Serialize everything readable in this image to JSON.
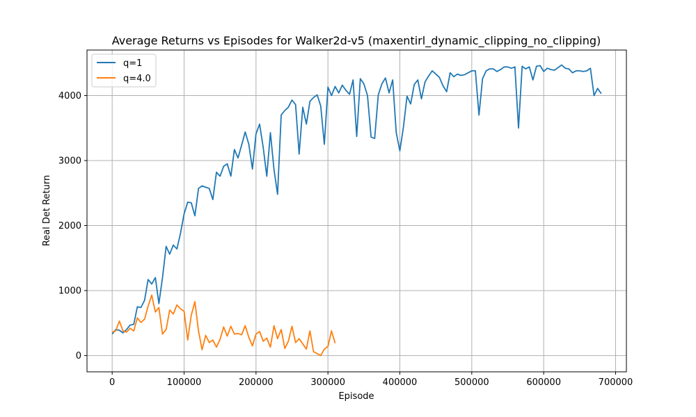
{
  "chart_data": {
    "type": "line",
    "title": "Average Returns vs Episodes for Walker2d-v5 (maxentirl_dynamic_clipping_no_clipping)",
    "xlabel": "Episode",
    "ylabel": "Real Det Return",
    "xlim": [
      -35000,
      715000
    ],
    "ylim": [
      -250,
      4700
    ],
    "xticks": [
      0,
      100000,
      200000,
      300000,
      400000,
      500000,
      600000,
      700000
    ],
    "yticks": [
      0,
      1000,
      2000,
      3000,
      4000
    ],
    "grid": true,
    "legend_position": "top-left",
    "series": [
      {
        "name": "q=1",
        "color": "#1f77b4",
        "x": [
          0,
          5000,
          10000,
          15000,
          20000,
          25000,
          30000,
          35000,
          40000,
          45000,
          50000,
          55000,
          60000,
          65000,
          70000,
          75000,
          80000,
          85000,
          90000,
          95000,
          100000,
          105000,
          110000,
          115000,
          120000,
          125000,
          130000,
          135000,
          140000,
          145000,
          150000,
          155000,
          160000,
          165000,
          170000,
          175000,
          180000,
          185000,
          190000,
          195000,
          200000,
          205000,
          210000,
          215000,
          220000,
          225000,
          230000,
          235000,
          240000,
          245000,
          250000,
          255000,
          260000,
          265000,
          270000,
          275000,
          280000,
          285000,
          290000,
          295000,
          300000,
          305000,
          310000,
          315000,
          320000,
          325000,
          330000,
          335000,
          340000,
          345000,
          350000,
          355000,
          360000,
          365000,
          370000,
          375000,
          380000,
          385000,
          390000,
          395000,
          400000,
          405000,
          410000,
          415000,
          420000,
          425000,
          430000,
          435000,
          440000,
          445000,
          450000,
          455000,
          460000,
          465000,
          470000,
          475000,
          480000,
          485000,
          490000,
          495000,
          500000,
          505000,
          510000,
          515000,
          520000,
          525000,
          530000,
          535000,
          540000,
          545000,
          550000,
          555000,
          560000,
          565000,
          570000,
          575000,
          580000,
          585000,
          590000,
          595000,
          600000,
          605000,
          610000,
          615000,
          620000,
          625000,
          630000,
          635000,
          640000,
          645000,
          650000,
          655000,
          660000,
          665000,
          670000,
          675000,
          680000
        ],
        "values": [
          330,
          400,
          390,
          350,
          400,
          470,
          480,
          750,
          740,
          850,
          1170,
          1100,
          1200,
          800,
          1200,
          1680,
          1560,
          1700,
          1640,
          1880,
          2180,
          2360,
          2350,
          2150,
          2570,
          2610,
          2590,
          2570,
          2400,
          2820,
          2760,
          2910,
          2950,
          2760,
          3170,
          3040,
          3240,
          3440,
          3250,
          2870,
          3410,
          3560,
          3200,
          2760,
          3430,
          2860,
          2480,
          3700,
          3770,
          3820,
          3930,
          3860,
          3100,
          3820,
          3560,
          3910,
          3970,
          4010,
          3840,
          3250,
          4130,
          4000,
          4140,
          4040,
          4160,
          4080,
          4020,
          4240,
          3370,
          4260,
          4180,
          4000,
          3360,
          3340,
          4010,
          4180,
          4270,
          4040,
          4240,
          3430,
          3150,
          3520,
          3990,
          3870,
          4170,
          4240,
          3950,
          4210,
          4300,
          4380,
          4330,
          4280,
          4150,
          4060,
          4350,
          4290,
          4330,
          4310,
          4320,
          4350,
          4380,
          4380,
          3700,
          4260,
          4380,
          4410,
          4410,
          4370,
          4400,
          4440,
          4440,
          4420,
          4440,
          3500,
          4450,
          4410,
          4440,
          4240,
          4450,
          4460,
          4370,
          4420,
          4400,
          4390,
          4430,
          4470,
          4420,
          4410,
          4350,
          4380,
          4380,
          4370,
          4380,
          4420,
          4000,
          4110,
          4030
        ]
      },
      {
        "name": "q=4.0",
        "color": "#ff7f0e",
        "x": [
          0,
          5000,
          10000,
          15000,
          20000,
          25000,
          30000,
          35000,
          40000,
          45000,
          50000,
          55000,
          60000,
          65000,
          70000,
          75000,
          80000,
          85000,
          90000,
          95000,
          100000,
          105000,
          110000,
          115000,
          120000,
          125000,
          130000,
          135000,
          140000,
          145000,
          150000,
          155000,
          160000,
          165000,
          170000,
          175000,
          180000,
          185000,
          190000,
          195000,
          200000,
          205000,
          210000,
          215000,
          220000,
          225000,
          230000,
          235000,
          240000,
          245000,
          250000,
          255000,
          260000,
          265000,
          270000,
          275000,
          280000,
          285000,
          290000,
          295000,
          300000,
          305000,
          310000
        ],
        "values": [
          360,
          380,
          530,
          380,
          360,
          420,
          380,
          580,
          510,
          560,
          760,
          930,
          670,
          740,
          330,
          400,
          700,
          640,
          780,
          720,
          680,
          240,
          620,
          830,
          380,
          90,
          310,
          200,
          240,
          130,
          250,
          440,
          300,
          450,
          330,
          340,
          320,
          460,
          280,
          150,
          330,
          370,
          220,
          270,
          130,
          460,
          260,
          400,
          110,
          220,
          450,
          200,
          260,
          180,
          100,
          380,
          60,
          30,
          0,
          100,
          140,
          380,
          190
        ]
      }
    ]
  }
}
